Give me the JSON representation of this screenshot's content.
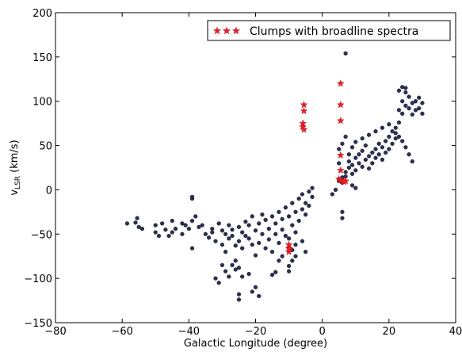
{
  "chart_data": {
    "type": "scatter",
    "title": "",
    "xlabel": "Galactic Longitude (degree)",
    "ylabel_main": "v",
    "ylabel_sub": "LSR",
    "ylabel_units": " (km/s)",
    "xlim": [
      -80,
      40
    ],
    "ylim": [
      -150,
      200
    ],
    "xticks": [
      -80,
      -60,
      -40,
      -20,
      0,
      20,
      40
    ],
    "yticks": [
      -150,
      -100,
      -50,
      0,
      50,
      100,
      150,
      200
    ],
    "grid": false,
    "legend_position": "top-right",
    "legend": [
      "Clumps with broadline spectra"
    ],
    "colors": {
      "clumps": "#2b3152",
      "broadline": "#e8202a"
    },
    "series": [
      {
        "name": "",
        "marker": "circle",
        "points": [
          [
            -58.5,
            -38
          ],
          [
            -56,
            -37
          ],
          [
            -55.5,
            -32
          ],
          [
            -55,
            -42
          ],
          [
            -54,
            -44
          ],
          [
            -50,
            -40
          ],
          [
            -50,
            -48
          ],
          [
            -49,
            -52
          ],
          [
            -48,
            -38
          ],
          [
            -47,
            -45
          ],
          [
            -46,
            -52
          ],
          [
            -45,
            -35
          ],
          [
            -44,
            -44
          ],
          [
            -42,
            -38
          ],
          [
            -42,
            -50
          ],
          [
            -41,
            -40
          ],
          [
            -40,
            -44
          ],
          [
            -39,
            -35
          ],
          [
            -38,
            -30
          ],
          [
            -39,
            -10
          ],
          [
            -39,
            -8
          ],
          [
            -39,
            -66
          ],
          [
            -36,
            -40
          ],
          [
            -35,
            -50
          ],
          [
            -34,
            -54
          ],
          [
            -33,
            -48
          ],
          [
            -32,
            -58
          ],
          [
            -31,
            -38
          ],
          [
            -30,
            -46
          ],
          [
            -30,
            -62
          ],
          [
            -29,
            -50
          ],
          [
            -29,
            -70
          ],
          [
            -28,
            -40
          ],
          [
            -28,
            -55
          ],
          [
            -27,
            -45
          ],
          [
            -27,
            -52
          ],
          [
            -26,
            -63
          ],
          [
            -26,
            -80
          ],
          [
            -25,
            -42
          ],
          [
            -25,
            -58
          ],
          [
            -24,
            -48
          ],
          [
            -24,
            -66
          ],
          [
            -23,
            -36
          ],
          [
            -23,
            -52
          ],
          [
            -22,
            -40
          ],
          [
            -22,
            -55
          ],
          [
            -21,
            -30
          ],
          [
            -21,
            -62
          ],
          [
            -20,
            -46
          ],
          [
            -20,
            -74
          ],
          [
            -19,
            -38
          ],
          [
            -19,
            -60
          ],
          [
            -18,
            -28
          ],
          [
            -18,
            -50
          ],
          [
            -17,
            -34
          ],
          [
            -17,
            -66
          ],
          [
            -16,
            -44
          ],
          [
            -16,
            -56
          ],
          [
            -15,
            -30
          ],
          [
            -15,
            -70
          ],
          [
            -14,
            -38
          ],
          [
            -14,
            -50
          ],
          [
            -13,
            -25
          ],
          [
            -13,
            -60
          ],
          [
            -12,
            -45
          ],
          [
            -12,
            -33
          ],
          [
            -11,
            -20
          ],
          [
            -11,
            -52
          ],
          [
            -10,
            -30
          ],
          [
            -10,
            -55
          ],
          [
            -9,
            -15
          ],
          [
            -9,
            -40
          ],
          [
            -8,
            -25
          ],
          [
            -8,
            -48
          ],
          [
            -7,
            -10
          ],
          [
            -7,
            -35
          ],
          [
            -6,
            -5
          ],
          [
            -6,
            -22
          ],
          [
            -5,
            -15
          ],
          [
            -5,
            -28
          ],
          [
            -4,
            -2
          ],
          [
            -4,
            -18
          ],
          [
            -3,
            -8
          ],
          [
            -3,
            2
          ],
          [
            -8,
            -62
          ],
          [
            -9,
            -68
          ],
          [
            -8,
            -75
          ],
          [
            -9,
            -80
          ],
          [
            -10,
            -86
          ],
          [
            -10,
            -92
          ],
          [
            -14,
            -93
          ],
          [
            -15,
            -96
          ],
          [
            -30,
            -85
          ],
          [
            -29,
            -92
          ],
          [
            -28,
            -98
          ],
          [
            -27,
            -85
          ],
          [
            -26,
            -90
          ],
          [
            -25,
            -88
          ],
          [
            -24,
            -98
          ],
          [
            -32,
            -100
          ],
          [
            -31,
            -105
          ],
          [
            -22,
            -95
          ],
          [
            -21,
            -115
          ],
          [
            -20,
            -110
          ],
          [
            -19,
            -120
          ],
          [
            -25,
            -118
          ],
          [
            -25,
            -124
          ],
          [
            -12,
            -75
          ],
          [
            -13,
            -80
          ],
          [
            -5,
            -70
          ],
          [
            -6,
            -58
          ],
          [
            -33,
            -44
          ],
          [
            -37,
            -42
          ],
          [
            -45,
            -48
          ],
          [
            5,
            10
          ],
          [
            5,
            12
          ],
          [
            6,
            14
          ],
          [
            6,
            8
          ],
          [
            7,
            15
          ],
          [
            7,
            20
          ],
          [
            8,
            25
          ],
          [
            8,
            32
          ],
          [
            9,
            18
          ],
          [
            9,
            28
          ],
          [
            10,
            22
          ],
          [
            10,
            36
          ],
          [
            11,
            30
          ],
          [
            11,
            40
          ],
          [
            12,
            26
          ],
          [
            12,
            44
          ],
          [
            13,
            34
          ],
          [
            13,
            50
          ],
          [
            14,
            38
          ],
          [
            14,
            24
          ],
          [
            15,
            42
          ],
          [
            15,
            30
          ],
          [
            16,
            46
          ],
          [
            16,
            36
          ],
          [
            17,
            40
          ],
          [
            17,
            52
          ],
          [
            18,
            48
          ],
          [
            18,
            34
          ],
          [
            19,
            55
          ],
          [
            19,
            42
          ],
          [
            20,
            60
          ],
          [
            20,
            46
          ],
          [
            21,
            66
          ],
          [
            21,
            52
          ],
          [
            22,
            70
          ],
          [
            22,
            58
          ],
          [
            23,
            76
          ],
          [
            23,
            90
          ],
          [
            24,
            86
          ],
          [
            24,
            100
          ],
          [
            25,
            95
          ],
          [
            25,
            110
          ],
          [
            26,
            92
          ],
          [
            26,
            105
          ],
          [
            27,
            85
          ],
          [
            27,
            98
          ],
          [
            28,
            90
          ],
          [
            28,
            100
          ],
          [
            29,
            92
          ],
          [
            29,
            104
          ],
          [
            30,
            86
          ],
          [
            30,
            98
          ],
          [
            23,
            112
          ],
          [
            24,
            116
          ],
          [
            25,
            115
          ],
          [
            23,
            60
          ],
          [
            24,
            55
          ],
          [
            25,
            48
          ],
          [
            26,
            40
          ],
          [
            27,
            32
          ],
          [
            22,
            64
          ],
          [
            5,
            46
          ],
          [
            5,
            30
          ],
          [
            6,
            52
          ],
          [
            7,
            60
          ],
          [
            7,
            154
          ],
          [
            6,
            -25
          ],
          [
            6,
            -32
          ],
          [
            4,
            0
          ],
          [
            3,
            -5
          ],
          [
            9,
            5
          ],
          [
            10,
            2
          ],
          [
            8,
            40
          ],
          [
            9,
            48
          ],
          [
            10,
            54
          ],
          [
            12,
            58
          ],
          [
            14,
            62
          ],
          [
            16,
            66
          ],
          [
            18,
            70
          ],
          [
            20,
            74
          ]
        ]
      },
      {
        "name": "Clumps with broadline spectra",
        "marker": "star",
        "points": [
          [
            -5.5,
            96
          ],
          [
            -5.5,
            89
          ],
          [
            -5.8,
            75
          ],
          [
            -5.8,
            71
          ],
          [
            -5.5,
            68
          ],
          [
            -10,
            -62
          ],
          [
            -10,
            -66
          ],
          [
            -10,
            -70
          ],
          [
            -9.8,
            -67
          ],
          [
            5.5,
            120
          ],
          [
            5.5,
            96
          ],
          [
            5.5,
            78
          ],
          [
            5.5,
            39
          ],
          [
            5.5,
            22
          ],
          [
            5,
            12
          ],
          [
            5.5,
            11
          ],
          [
            6,
            10
          ],
          [
            6.5,
            9
          ],
          [
            7,
            10
          ]
        ]
      }
    ]
  }
}
